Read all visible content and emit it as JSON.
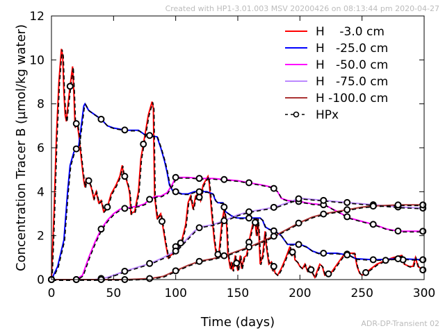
{
  "header_text": "Created with HP1-3.01.003 MSV 20200426 on 08:13:44 pm 2020-04-27",
  "footer_text": "ADR-DP-Transient 02",
  "chart_data": {
    "type": "line",
    "title": "",
    "xlabel": "Time (days)",
    "ylabel": "Concentration Tracer B (µmol/kg water)",
    "xlim": [
      0,
      300
    ],
    "ylim": [
      0,
      12
    ],
    "xticks": [
      0,
      50,
      100,
      150,
      200,
      250,
      300
    ],
    "yticks": [
      0,
      2,
      4,
      6,
      8,
      10,
      12
    ],
    "grid": false,
    "legend_position": "top-right",
    "series": [
      {
        "name": "H    -3.0 cm",
        "color": "#ff0000",
        "points": [
          [
            0,
            0
          ],
          [
            2,
            3
          ],
          [
            4,
            6.5
          ],
          [
            6,
            9
          ],
          [
            8,
            10.5
          ],
          [
            9,
            10.2
          ],
          [
            10,
            8.5
          ],
          [
            11,
            7.5
          ],
          [
            12,
            7.2
          ],
          [
            13,
            7.8
          ],
          [
            15,
            8.8
          ],
          [
            17,
            9.7
          ],
          [
            18,
            8.5
          ],
          [
            19,
            7
          ],
          [
            20,
            7.1
          ],
          [
            21,
            7
          ],
          [
            22,
            6.6
          ],
          [
            24,
            5.5
          ],
          [
            26,
            4.5
          ],
          [
            27,
            4.2
          ],
          [
            28,
            4.6
          ],
          [
            30,
            4.5
          ],
          [
            32,
            4.2
          ],
          [
            34,
            3.7
          ],
          [
            36,
            4
          ],
          [
            38,
            3.5
          ],
          [
            40,
            3.6
          ],
          [
            42,
            3.1
          ],
          [
            45,
            3.3
          ],
          [
            48,
            3.9
          ],
          [
            52,
            4.3
          ],
          [
            55,
            4.7
          ],
          [
            57,
            5.2
          ],
          [
            58,
            4.8
          ],
          [
            60,
            4.6
          ],
          [
            62,
            4.2
          ],
          [
            63,
            3.9
          ],
          [
            64,
            3.0
          ],
          [
            67,
            3.1
          ],
          [
            70,
            4.0
          ],
          [
            72,
            5.5
          ],
          [
            75,
            6.5
          ],
          [
            78,
            7.5
          ],
          [
            81,
            8.1
          ],
          [
            82,
            7.8
          ],
          [
            83,
            3.8
          ],
          [
            85,
            2.8
          ],
          [
            88,
            3.0
          ],
          [
            90,
            2.3
          ],
          [
            92,
            1.6
          ],
          [
            94,
            1.0
          ],
          [
            96,
            1.1
          ],
          [
            98,
            1.2
          ],
          [
            100,
            1.5
          ],
          [
            102,
            1.4
          ],
          [
            105,
            1.8
          ],
          [
            108,
            2.5
          ],
          [
            110,
            3.5
          ],
          [
            112,
            3.8
          ],
          [
            114,
            3.2
          ],
          [
            116,
            3.8
          ],
          [
            118,
            3.9
          ],
          [
            120,
            3.6
          ],
          [
            122,
            4.3
          ],
          [
            124,
            4.5
          ],
          [
            126,
            4.7
          ],
          [
            127,
            4.4
          ],
          [
            129,
            3
          ],
          [
            131,
            1.8
          ],
          [
            133,
            1.0
          ],
          [
            135,
            1.3
          ],
          [
            137,
            2.5
          ],
          [
            139,
            3.2
          ],
          [
            141,
            2.5
          ],
          [
            142,
            1.2
          ],
          [
            144,
            0.5
          ],
          [
            145,
            0.8
          ],
          [
            146,
            0.4
          ],
          [
            148,
            1.1
          ],
          [
            150,
            0.4
          ],
          [
            152,
            1.1
          ],
          [
            153,
            0.5
          ],
          [
            155,
            1.0
          ],
          [
            157,
            1.1
          ],
          [
            160,
            2.0
          ],
          [
            162,
            2.5
          ],
          [
            164,
            2.6
          ],
          [
            165,
            2.0
          ],
          [
            166,
            2.8
          ],
          [
            167,
            2.0
          ],
          [
            168,
            0.7
          ],
          [
            170,
            1.1
          ],
          [
            172,
            2.2
          ],
          [
            173,
            1.5
          ],
          [
            175,
            0.7
          ],
          [
            177,
            0.8
          ],
          [
            178,
            0.4
          ],
          [
            179,
            0.6
          ],
          [
            180,
            0.3
          ],
          [
            182,
            0.2
          ],
          [
            185,
            0.5
          ],
          [
            188,
            0.9
          ],
          [
            190,
            1.2
          ],
          [
            192,
            1.5
          ],
          [
            193,
            1.1
          ],
          [
            195,
            1.4
          ],
          [
            196,
            0.9
          ],
          [
            198,
            0.8
          ],
          [
            200,
            0.6
          ],
          [
            202,
            0.5
          ],
          [
            204,
            0.7
          ],
          [
            206,
            0.4
          ],
          [
            208,
            0.6
          ],
          [
            210,
            0.3
          ],
          [
            212,
            0.1
          ],
          [
            214,
            0.4
          ],
          [
            216,
            0.7
          ],
          [
            218,
            0.6
          ],
          [
            220,
            0.2
          ],
          [
            225,
            0.3
          ],
          [
            230,
            0.7
          ],
          [
            235,
            1.1
          ],
          [
            240,
            1.2
          ],
          [
            244,
            1.2
          ],
          [
            246,
            0.6
          ],
          [
            248,
            0.3
          ],
          [
            250,
            0.2
          ],
          [
            255,
            0.4
          ],
          [
            262,
            0.7
          ],
          [
            270,
            0.9
          ],
          [
            275,
            1.0
          ],
          [
            282,
            1.1
          ],
          [
            284,
            0.7
          ],
          [
            288,
            0.6
          ],
          [
            291,
            0.6
          ],
          [
            293,
            1.0
          ],
          [
            295,
            0.6
          ],
          [
            300,
            0.4
          ]
        ]
      },
      {
        "name": "H   -25.0 cm",
        "color": "#0000ff",
        "points": [
          [
            0,
            0
          ],
          [
            5,
            0.6
          ],
          [
            10,
            1.8
          ],
          [
            13,
            4
          ],
          [
            15,
            5.2
          ],
          [
            18,
            5.8
          ],
          [
            22,
            6.1
          ],
          [
            24,
            7
          ],
          [
            26,
            7.9
          ],
          [
            27,
            8.0
          ],
          [
            30,
            7.7
          ],
          [
            35,
            7.5
          ],
          [
            40,
            7.3
          ],
          [
            45,
            7.0
          ],
          [
            50,
            6.9
          ],
          [
            60,
            6.8
          ],
          [
            70,
            6.8
          ],
          [
            75,
            6.6
          ],
          [
            80,
            6.55
          ],
          [
            85,
            6.5
          ],
          [
            88,
            6.0
          ],
          [
            91,
            5.4
          ],
          [
            93,
            4.9
          ],
          [
            95,
            4.3
          ],
          [
            98,
            4.0
          ],
          [
            100,
            4.0
          ],
          [
            105,
            3.9
          ],
          [
            110,
            3.9
          ],
          [
            115,
            4.0
          ],
          [
            125,
            4.0
          ],
          [
            130,
            3.9
          ],
          [
            132,
            3.6
          ],
          [
            134,
            3.5
          ],
          [
            138,
            3.5
          ],
          [
            140,
            3.1
          ],
          [
            145,
            2.9
          ],
          [
            150,
            2.8
          ],
          [
            160,
            2.8
          ],
          [
            168,
            2.8
          ],
          [
            170,
            2.7
          ],
          [
            172,
            2.4
          ],
          [
            175,
            2.3
          ],
          [
            180,
            2.2
          ],
          [
            185,
            2.0
          ],
          [
            190,
            1.6
          ],
          [
            200,
            1.6
          ],
          [
            205,
            1.5
          ],
          [
            210,
            1.3
          ],
          [
            215,
            1.2
          ],
          [
            230,
            1.2
          ],
          [
            240,
            1.1
          ],
          [
            245,
            0.95
          ],
          [
            260,
            0.9
          ],
          [
            280,
            0.95
          ],
          [
            300,
            0.9
          ]
        ]
      },
      {
        "name": "H   -50.0 cm",
        "color": "#ff00ff",
        "points": [
          [
            0,
            0
          ],
          [
            20,
            0
          ],
          [
            25,
            0.2
          ],
          [
            30,
            1
          ],
          [
            35,
            1.7
          ],
          [
            40,
            2.3
          ],
          [
            45,
            2.7
          ],
          [
            50,
            3.0
          ],
          [
            55,
            3.2
          ],
          [
            60,
            3.25
          ],
          [
            70,
            3.35
          ],
          [
            75,
            3.45
          ],
          [
            80,
            3.7
          ],
          [
            85,
            3.8
          ],
          [
            88,
            3.8
          ],
          [
            93,
            3.95
          ],
          [
            97,
            4.3
          ],
          [
            100,
            4.65
          ],
          [
            110,
            4.65
          ],
          [
            120,
            4.6
          ],
          [
            130,
            4.6
          ],
          [
            140,
            4.55
          ],
          [
            150,
            4.5
          ],
          [
            160,
            4.4
          ],
          [
            170,
            4.3
          ],
          [
            178,
            4.2
          ],
          [
            182,
            4.0
          ],
          [
            185,
            3.7
          ],
          [
            190,
            3.6
          ],
          [
            200,
            3.55
          ],
          [
            210,
            3.45
          ],
          [
            220,
            3.4
          ],
          [
            230,
            3.1
          ],
          [
            240,
            2.8
          ],
          [
            250,
            2.65
          ],
          [
            260,
            2.5
          ],
          [
            270,
            2.3
          ],
          [
            280,
            2.2
          ],
          [
            300,
            2.2
          ]
        ]
      },
      {
        "name": "H   -75.0 cm",
        "color": "#bb88ff",
        "points": [
          [
            0,
            0
          ],
          [
            35,
            0
          ],
          [
            45,
            0.1
          ],
          [
            60,
            0.4
          ],
          [
            80,
            0.75
          ],
          [
            90,
            1.0
          ],
          [
            100,
            1.3
          ],
          [
            105,
            1.6
          ],
          [
            110,
            1.9
          ],
          [
            115,
            2.2
          ],
          [
            120,
            2.4
          ],
          [
            130,
            2.5
          ],
          [
            140,
            2.7
          ],
          [
            150,
            2.95
          ],
          [
            160,
            3.1
          ],
          [
            170,
            3.2
          ],
          [
            180,
            3.3
          ],
          [
            190,
            3.5
          ],
          [
            200,
            3.7
          ],
          [
            210,
            3.65
          ],
          [
            220,
            3.6
          ],
          [
            230,
            3.55
          ],
          [
            240,
            3.5
          ],
          [
            260,
            3.4
          ],
          [
            280,
            3.3
          ],
          [
            300,
            3.25
          ]
        ]
      },
      {
        "name": "H -100.0 cm",
        "color": "#aa3333",
        "points": [
          [
            0,
            0
          ],
          [
            60,
            0
          ],
          [
            80,
            0.05
          ],
          [
            90,
            0.15
          ],
          [
            100,
            0.4
          ],
          [
            110,
            0.65
          ],
          [
            120,
            0.85
          ],
          [
            130,
            0.95
          ],
          [
            140,
            1.1
          ],
          [
            150,
            1.3
          ],
          [
            160,
            1.5
          ],
          [
            170,
            1.75
          ],
          [
            180,
            2.0
          ],
          [
            190,
            2.3
          ],
          [
            200,
            2.6
          ],
          [
            210,
            2.85
          ],
          [
            220,
            3.0
          ],
          [
            230,
            3.1
          ],
          [
            240,
            3.2
          ],
          [
            250,
            3.3
          ],
          [
            260,
            3.35
          ],
          [
            280,
            3.4
          ],
          [
            300,
            3.4
          ]
        ]
      }
    ],
    "hpx": {
      "name": "HPx",
      "color": "#000000",
      "marker_days": [
        [
          0,
          15,
          20,
          30,
          45,
          59,
          74,
          89,
          100,
          104,
          119,
          134,
          149,
          159,
          164,
          179,
          194,
          209,
          223,
          238,
          253,
          269,
          283,
          299
        ],
        [
          0,
          20,
          40,
          59,
          79,
          100,
          119,
          139,
          159,
          179,
          199,
          219,
          238,
          259,
          279,
          299
        ],
        [
          0,
          20,
          40,
          59,
          79,
          100,
          119,
          139,
          159,
          179,
          199,
          219,
          238,
          259,
          279,
          299
        ],
        [
          0,
          20,
          40,
          59,
          79,
          100,
          119,
          139,
          159,
          179,
          199,
          219,
          238,
          259,
          279,
          299
        ],
        [
          0,
          20,
          40,
          59,
          79,
          100,
          119,
          139,
          159,
          179,
          199,
          219,
          238,
          259,
          279,
          299
        ]
      ]
    }
  }
}
